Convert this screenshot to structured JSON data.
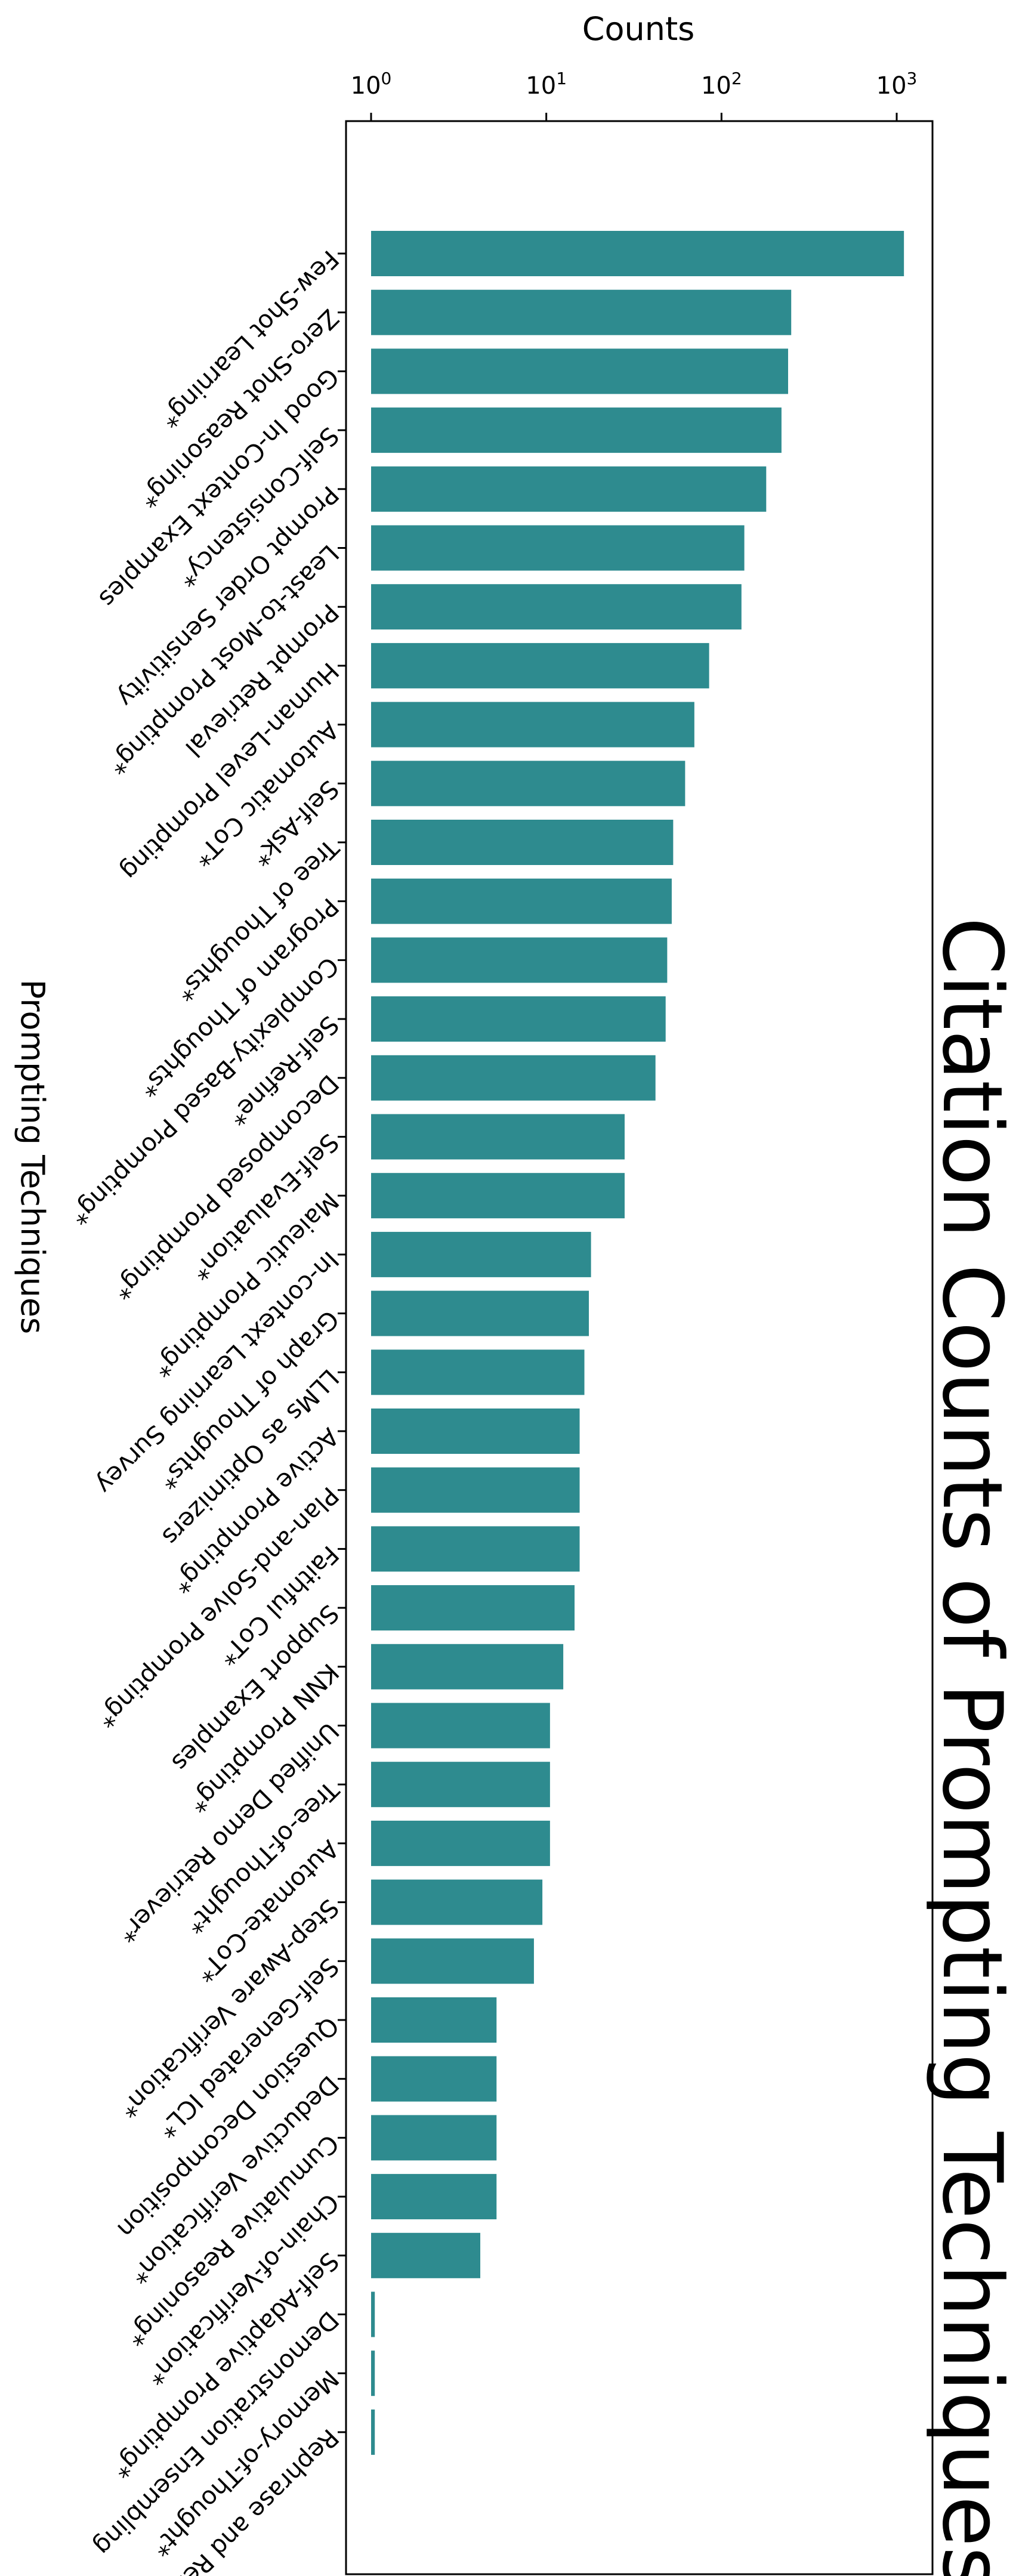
{
  "chart_data": {
    "type": "bar",
    "orientation": "horizontal",
    "title": "Citation Counts of Prompting Techniques",
    "xlabel": "Counts",
    "ylabel": "Prompting Techniques",
    "x_scale": "log",
    "xlim": [
      1,
      1000
    ],
    "x_ticks": [
      {
        "value": 1,
        "base": "10",
        "exp": "0"
      },
      {
        "value": 10,
        "base": "10",
        "exp": "1"
      },
      {
        "value": 100,
        "base": "10",
        "exp": "2"
      },
      {
        "value": 1000,
        "base": "10",
        "exp": "3"
      }
    ],
    "bar_color": "#2e8b8f",
    "grid": false,
    "legend": "none",
    "categories": [
      "Few-Shot Learning*",
      "Zero-Shot Reasoning*",
      "Good In-Context Examples",
      "Self-Consistency*",
      "Prompt Order Sensitivity",
      "Least-to-Most Prompting*",
      "Prompt Retrieval",
      "Human-Level Prompting",
      "Automatic CoT*",
      "Self-Ask*",
      "Tree of Thoughts*",
      "Program of Thoughts*",
      "Complexity-Based Prompting*",
      "Self-Refine*",
      "Decomposed Prompting*",
      "Self-Evaluation*",
      "Maieutic Prompting*",
      "In-context Learning Survey",
      "Graph of Thoughts*",
      "LLMs as Optimizers",
      "Active Prompting*",
      "Plan-and-Solve Prompting*",
      "Faithful CoT*",
      "Support Examples",
      "KNN Prompting*",
      "Unified Demo Retriever*",
      "Tree-of-Thought*",
      "Automate-CoT*",
      "Step-Aware Verification*",
      "Self-Generated ICL*",
      "Question Decomposition",
      "Deductive Verification*",
      "Cumulative Reasoning*",
      "Chain-of-Verification*",
      "Self-Adaptive Prompting*",
      "Demonstration Ensembling",
      "Memory-of-Thought*",
      "Rephrase and Respond*"
    ],
    "values": [
      1100,
      250,
      240,
      220,
      180,
      135,
      130,
      85,
      70,
      62,
      53,
      52,
      49,
      48,
      42,
      28,
      28,
      18,
      17.5,
      16.5,
      15.5,
      15.5,
      15.5,
      14.5,
      12.5,
      10.5,
      10.5,
      10.5,
      9.5,
      8.5,
      5.2,
      5.2,
      5.2,
      5.2,
      4.2,
      1.05,
      1.05,
      1.05
    ]
  }
}
